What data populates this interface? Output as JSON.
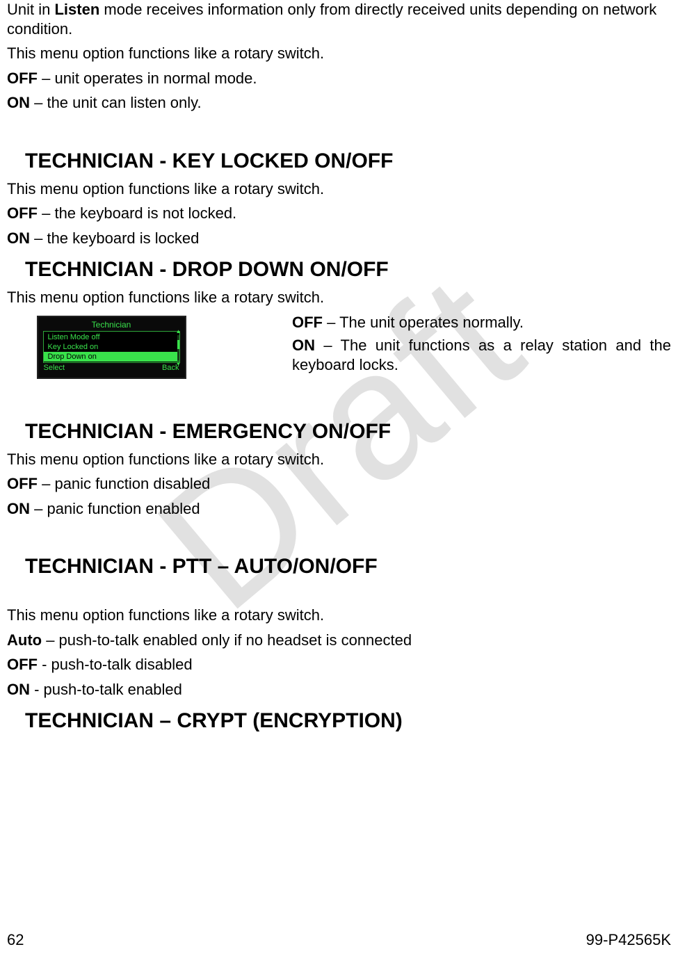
{
  "watermark": "Draft",
  "intro": {
    "p1_a": "Unit in ",
    "p1_b": "Listen",
    "p1_c": " mode receives information only from directly received units depending on network condition.",
    "p2": "This menu option functions like a rotary switch.",
    "off_b": "OFF",
    "off_t": " – unit operates in normal mode.",
    "on_b": "ON",
    "on_t": " – the unit can listen only."
  },
  "keylocked": {
    "title": "TECHNICIAN - KEY LOCKED ON/OFF",
    "p": "This menu option functions like a rotary switch.",
    "off_b": "OFF",
    "off_t": " – the keyboard is not locked.",
    "on_b": "ON",
    "on_t": " – the keyboard is locked"
  },
  "dropdown": {
    "title": "TECHNICIAN - DROP DOWN ON/OFF",
    "p": "This menu option functions like a rotary switch.",
    "off_b": "OFF",
    "off_t": " – The unit operates normally.",
    "on_b": "ON",
    "on_t": " – The unit functions as a relay station and the keyboard locks."
  },
  "lcd": {
    "title": "Technician",
    "item1": "Listen Mode off",
    "item2": "Key Locked on",
    "item3": "Drop Down on",
    "select": "Select",
    "back": "Back"
  },
  "emergency": {
    "title": "TECHNICIAN - EMERGENCY ON/OFF",
    "p": "This menu option functions like a rotary switch.",
    "off_b": "OFF",
    "off_t": " – panic function disabled",
    "on_b": "ON",
    "on_t": " – panic function enabled"
  },
  "ptt": {
    "title": "TECHNICIAN - PTT – AUTO/ON/OFF",
    "p": "This menu option functions like a rotary switch.",
    "auto_b": "Auto",
    "auto_t": " – push-to-talk enabled only if no headset is connected",
    "off_b": "OFF",
    "off_t": " - push-to-talk disabled",
    "on_b": "ON",
    "on_t": " - push-to-talk enabled"
  },
  "crypt": {
    "title": "TECHNICIAN – CRYPT (ENCRYPTION)"
  },
  "footer": {
    "page": "62",
    "doc": "99-P42565K"
  }
}
